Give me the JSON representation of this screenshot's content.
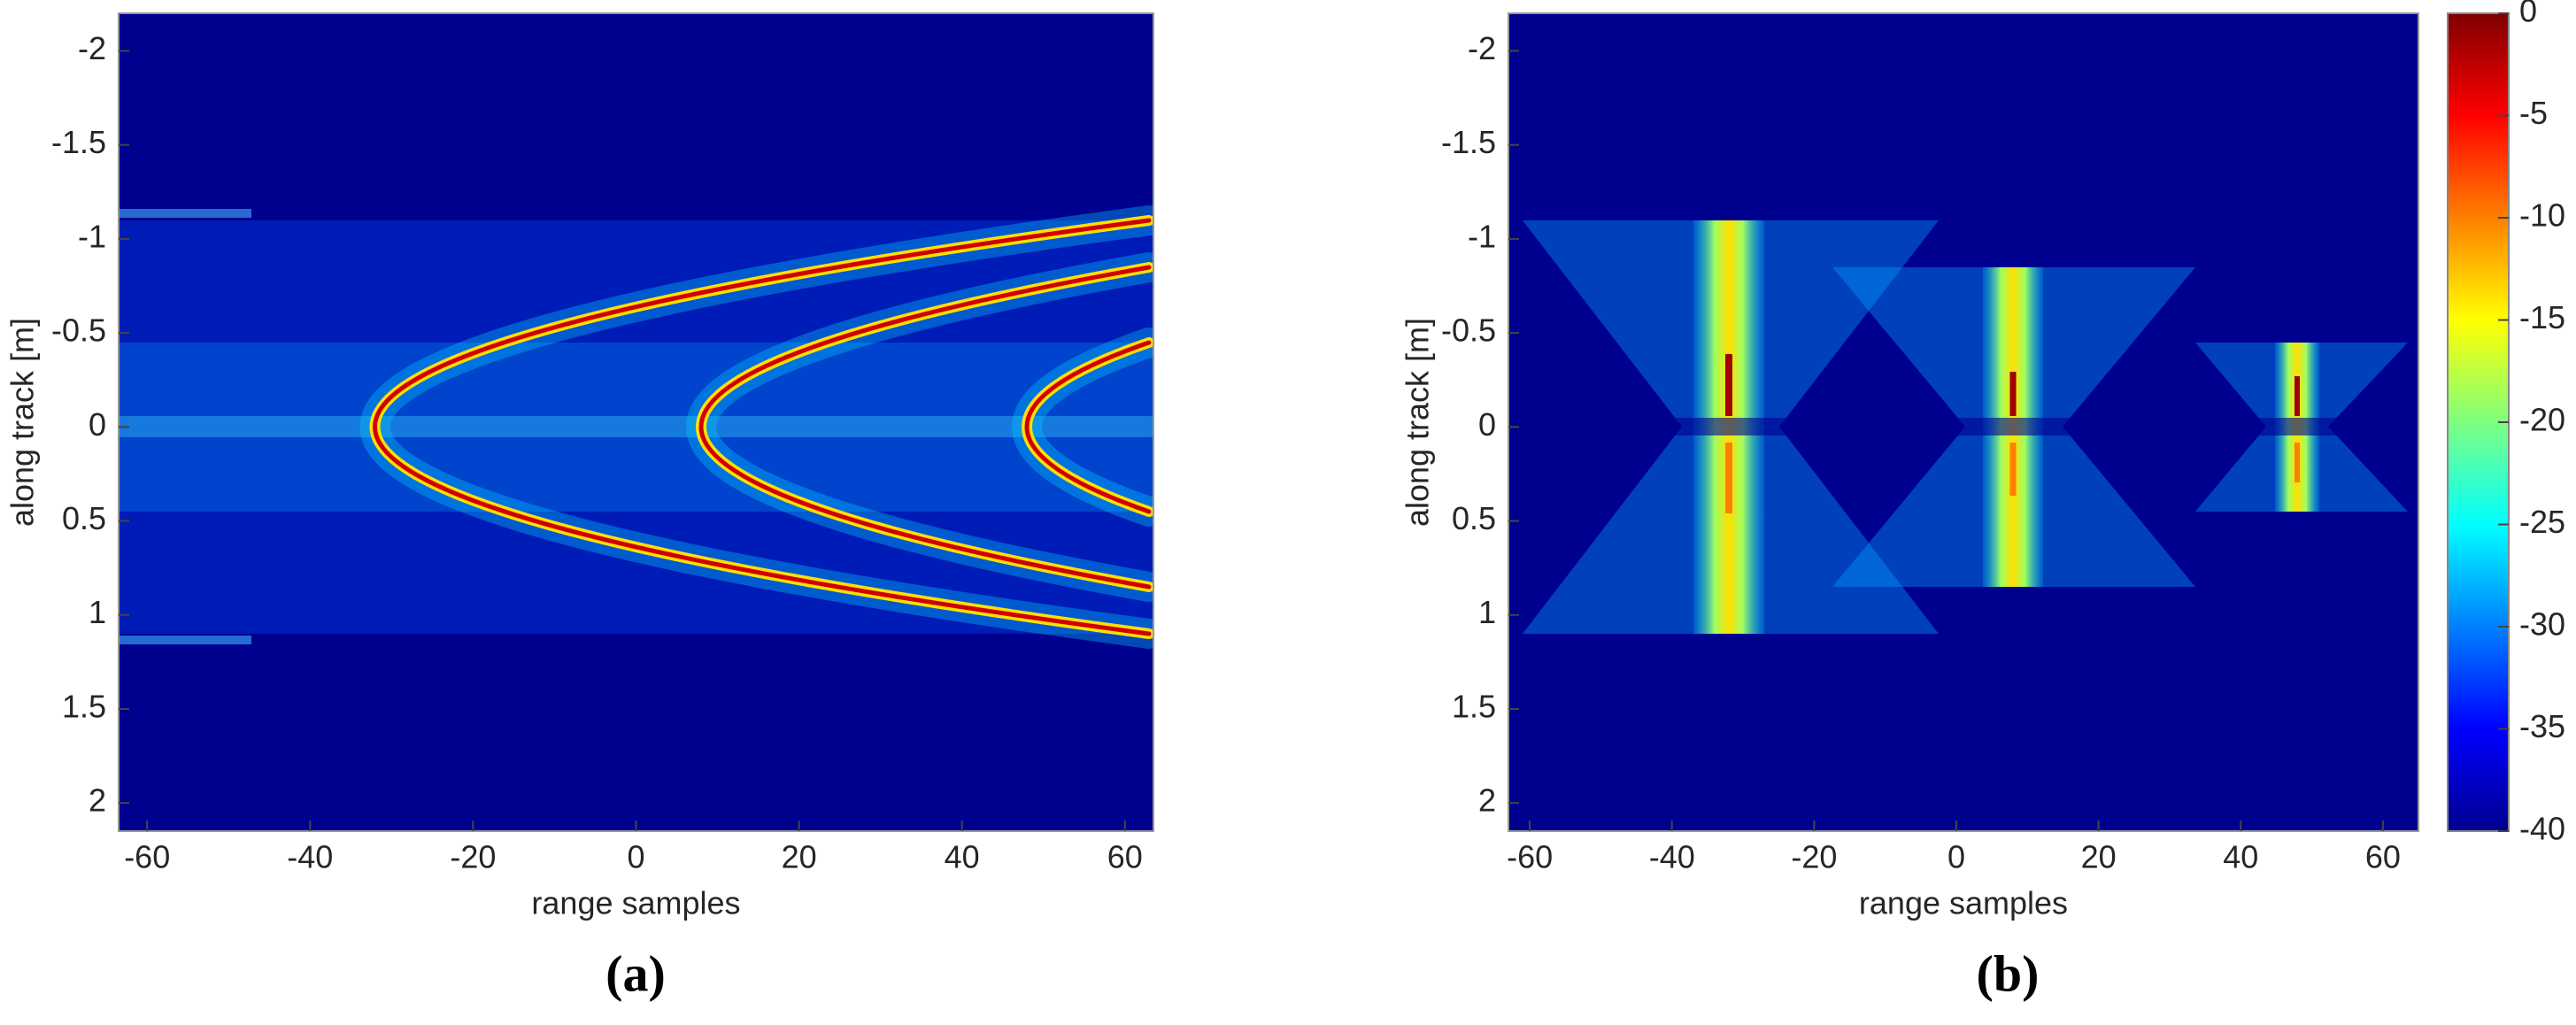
{
  "chart_data": [
    {
      "type": "heatmap",
      "caption": "(a)",
      "xlabel": "range samples",
      "ylabel": "along track [m]",
      "xlim": [
        -63.5,
        63.5
      ],
      "xticks": [
        -60,
        -40,
        -20,
        0,
        20,
        40,
        60
      ],
      "ylim": [
        -2.2,
        2.15
      ],
      "yticks": [
        -2,
        -1.5,
        -1,
        -0.5,
        0,
        0.5,
        1,
        1.5,
        2
      ],
      "y_reversed": true,
      "colormap": "jet",
      "background": "#00008f"
    },
    {
      "type": "heatmap",
      "caption": "(b)",
      "xlabel": "range samples",
      "ylabel": "along track [m]",
      "xlim": [
        -63,
        65
      ],
      "xticks": [
        -60,
        -40,
        -20,
        0,
        20,
        40,
        60
      ],
      "ylim": [
        -2.2,
        2.15
      ],
      "yticks": [
        -2,
        -1.5,
        -1,
        -0.5,
        0,
        0.5,
        1,
        1.5,
        2
      ],
      "y_reversed": true,
      "colormap": "jet",
      "background": "#00008f",
      "colorbar": {
        "lim": [
          -40,
          0
        ],
        "ticks": [
          0,
          -5,
          -10,
          -15,
          -20,
          -25,
          -30,
          -35,
          -40
        ]
      }
    }
  ]
}
